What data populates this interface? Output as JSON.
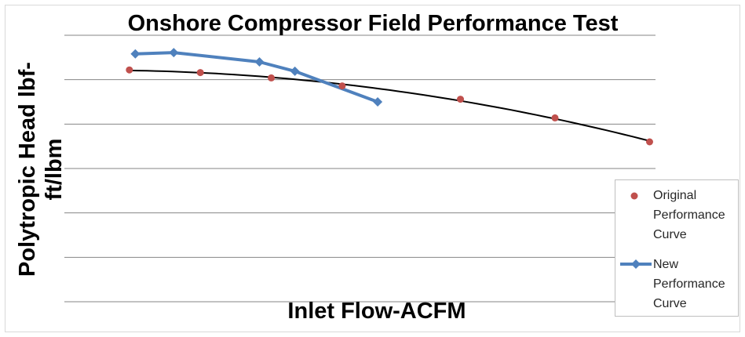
{
  "chart_data": {
    "type": "line",
    "title": "Onshore Compressor Field Performance Test",
    "xlabel": "Inlet Flow-ACFM",
    "ylabel": "Polytropic Head lbf-ft/lbm",
    "gridlines": "horizontal",
    "legend_position": "right",
    "xlim": [
      0,
      100
    ],
    "ylim": [
      0,
      100
    ],
    "series": [
      {
        "name": "Original Performance Curve",
        "style": "markers",
        "color": "#c0504d",
        "trendline": true,
        "trendline_color": "#000000",
        "x": [
          11,
          23,
          35,
          47,
          67,
          83,
          99
        ],
        "y": [
          87,
          86,
          84,
          81,
          76,
          69,
          60
        ]
      },
      {
        "name": "New Performance Curve",
        "style": "line-markers",
        "color": "#4f81bd",
        "x": [
          12,
          18.5,
          33,
          39,
          53
        ],
        "y": [
          93,
          93.5,
          90,
          86.5,
          75
        ]
      }
    ]
  }
}
